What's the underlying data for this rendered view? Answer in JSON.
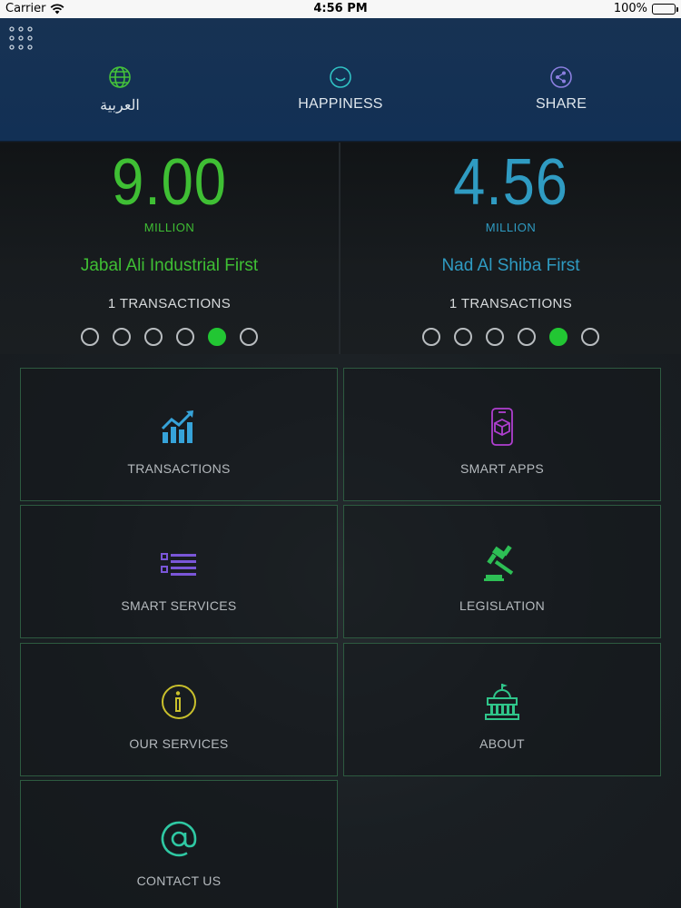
{
  "status_bar": {
    "carrier": "Carrier",
    "time": "4:56 PM",
    "battery": "100%"
  },
  "header": {
    "menu_icon": "grid-dots-icon",
    "items": [
      {
        "label": "العربية",
        "icon": "globe-icon"
      },
      {
        "label": "HAPPINESS",
        "icon": "smiley-icon"
      },
      {
        "label": "SHARE",
        "icon": "share-icon"
      }
    ]
  },
  "tickers": [
    {
      "amount": "9.00",
      "unit": "MILLION",
      "place": "Jabal Ali Industrial First",
      "transactions": "1 TRANSACTIONS",
      "color": "#3fbf34",
      "page_count": 6,
      "active_page": 5
    },
    {
      "amount": "4.56",
      "unit": "MILLION",
      "place": "Nad Al Shiba First",
      "transactions": "1 TRANSACTIONS",
      "color": "#2f9bc2",
      "page_count": 6,
      "active_page": 5
    }
  ],
  "tiles": [
    {
      "label": "TRANSACTIONS",
      "icon": "chart-trend-icon",
      "color": "#36a3d9"
    },
    {
      "label": "SMART APPS",
      "icon": "smartphone-cube-icon",
      "color": "#b03fd0"
    },
    {
      "label": "SMART SERVICES",
      "icon": "list-icon",
      "color": "#7a56d8"
    },
    {
      "label": "LEGISLATION",
      "icon": "gavel-icon",
      "color": "#2dbf55"
    },
    {
      "label": "OUR SERVICES",
      "icon": "info-icon",
      "color": "#c9c02c"
    },
    {
      "label": "ABOUT",
      "icon": "building-icon",
      "color": "#2fc58a"
    },
    {
      "label": "CONTACT US",
      "icon": "at-sign-icon",
      "color": "#2fc8a3"
    }
  ],
  "colors": {
    "header_bg": "#173253",
    "tile_border": "#2d5a40",
    "dot_active": "#22c633"
  }
}
